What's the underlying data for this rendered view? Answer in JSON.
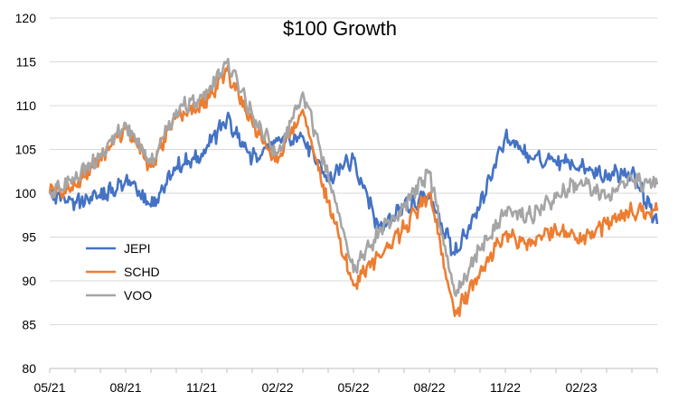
{
  "chart_data": {
    "type": "line",
    "title": "$100 Growth",
    "xlabel": "",
    "ylabel": "",
    "ylim": [
      80,
      120
    ],
    "yticks": [
      80,
      85,
      90,
      95,
      100,
      105,
      110,
      115,
      120
    ],
    "x_tick_labels": [
      "05/21",
      "08/21",
      "11/21",
      "02/22",
      "05/22",
      "08/22",
      "11/22",
      "02/23"
    ],
    "x_range_months": [
      "05/21",
      "06/21",
      "07/21",
      "08/21",
      "09/21",
      "10/21",
      "11/21",
      "12/21",
      "01/22",
      "02/22",
      "03/22",
      "04/22",
      "05/22",
      "06/22",
      "07/22",
      "08/22",
      "09/22",
      "10/22",
      "11/22",
      "12/22",
      "01/23",
      "02/23",
      "03/23",
      "04/23",
      "05/23"
    ],
    "grid": "horizontal",
    "legend_position": "left",
    "series": [
      {
        "name": "JEPI",
        "color": "#4472C4",
        "x": [
          "05/21",
          "06/21",
          "07/21",
          "08/21",
          "09/21",
          "10/21",
          "11/21",
          "12/21",
          "01/22",
          "02/22",
          "03/22",
          "04/22",
          "05/22",
          "06/22",
          "07/22",
          "08/22",
          "09/22",
          "10/22",
          "11/22",
          "12/22",
          "01/23",
          "02/23",
          "03/23",
          "04/23",
          "05/23"
        ],
        "values": [
          100.0,
          99.0,
          99.5,
          101.5,
          98.5,
          103.0,
          104.5,
          108.5,
          104.0,
          106.0,
          106.5,
          101.5,
          104.0,
          96.0,
          98.5,
          99.5,
          93.0,
          98.5,
          106.5,
          104.0,
          103.5,
          103.0,
          102.0,
          102.5,
          96.5
        ]
      },
      {
        "name": "SCHD",
        "color": "#ED7D31",
        "x": [
          "05/21",
          "06/21",
          "07/21",
          "08/21",
          "09/21",
          "10/21",
          "11/21",
          "12/21",
          "01/22",
          "02/22",
          "03/22",
          "04/22",
          "05/22",
          "06/22",
          "07/22",
          "08/22",
          "09/22",
          "10/22",
          "11/22",
          "12/22",
          "01/23",
          "02/23",
          "03/23",
          "04/23",
          "05/23"
        ],
        "values": [
          100.0,
          101.0,
          104.0,
          107.5,
          103.0,
          109.0,
          110.0,
          114.0,
          108.0,
          103.5,
          109.5,
          99.0,
          89.5,
          93.0,
          96.0,
          100.0,
          86.0,
          91.0,
          95.5,
          94.0,
          96.0,
          94.5,
          96.5,
          98.0,
          98.0
        ]
      },
      {
        "name": "VOO",
        "color": "#A5A5A5",
        "x": [
          "05/21",
          "06/21",
          "07/21",
          "08/21",
          "09/21",
          "10/21",
          "11/21",
          "12/21",
          "01/22",
          "02/22",
          "03/22",
          "04/22",
          "05/22",
          "06/22",
          "07/22",
          "08/22",
          "09/22",
          "10/22",
          "11/22",
          "12/22",
          "01/23",
          "02/23",
          "03/23",
          "04/23",
          "05/23"
        ],
        "values": [
          100.0,
          101.5,
          104.5,
          108.0,
          103.5,
          109.5,
          111.0,
          115.0,
          109.0,
          104.5,
          111.5,
          102.0,
          91.0,
          95.5,
          98.5,
          102.5,
          88.5,
          93.5,
          98.0,
          97.5,
          99.5,
          101.5,
          99.5,
          101.5,
          101.0
        ]
      }
    ]
  }
}
